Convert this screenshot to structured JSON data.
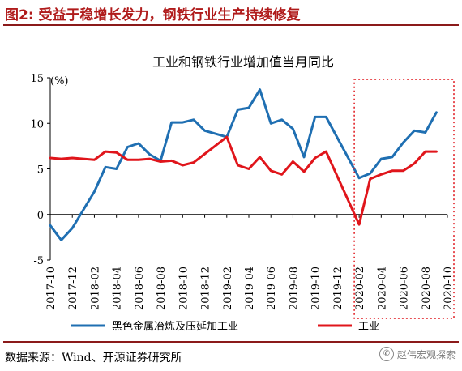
{
  "figure": {
    "title": "图2:  受益于稳增长发力，钢铁行业生产持续修复",
    "source": "数据来源：Wind、开源证券研究所",
    "watermark": "赵伟宏观探索",
    "watermark_icon": "wechat-icon"
  },
  "chart_data": {
    "type": "line",
    "title": "工业和钢铁行业增加值当月同比",
    "unit_label": "(%)",
    "ylim": [
      -5,
      15
    ],
    "yticks": [
      -5,
      0,
      5,
      10,
      15
    ],
    "xticks": [
      "2017-10",
      "2017-12",
      "2018-02",
      "2018-04",
      "2018-06",
      "2018-08",
      "2018-10",
      "2018-12",
      "2019-02",
      "2019-04",
      "2019-06",
      "2019-08",
      "2019-10",
      "2019-12",
      "2020-02",
      "2020-04",
      "2020-06",
      "2020-08",
      "2020-10"
    ],
    "x": [
      "2017-10",
      "2017-11",
      "2017-12",
      "2018-01",
      "2018-02",
      "2018-03",
      "2018-04",
      "2018-05",
      "2018-06",
      "2018-07",
      "2018-08",
      "2018-09",
      "2018-10",
      "2018-11",
      "2018-12",
      "2019-01",
      "2019-02",
      "2019-03",
      "2019-04",
      "2019-05",
      "2019-06",
      "2019-07",
      "2019-08",
      "2019-09",
      "2019-10",
      "2019-11",
      "2019-12",
      "2020-01",
      "2020-02",
      "2020-03",
      "2020-04",
      "2020-05",
      "2020-06",
      "2020-07",
      "2020-08",
      "2020-09",
      "2020-10"
    ],
    "series": [
      {
        "name": "黑色金属冶炼及压延加工业",
        "color": "#1f6fb2",
        "values": [
          -1.2,
          -2.8,
          -1.5,
          null,
          2.5,
          5.2,
          5.0,
          7.4,
          7.8,
          6.6,
          5.9,
          10.1,
          10.1,
          10.4,
          9.2,
          null,
          8.5,
          11.5,
          11.7,
          13.7,
          10.0,
          10.4,
          9.4,
          6.3,
          10.7,
          10.7,
          null,
          null,
          4.0,
          4.5,
          6.1,
          6.3,
          7.9,
          9.2,
          9.0,
          11.2,
          null
        ]
      },
      {
        "name": "工业",
        "color": "#e0151b",
        "values": [
          6.2,
          6.1,
          6.2,
          null,
          6.0,
          6.9,
          6.8,
          6.0,
          6.0,
          6.1,
          5.8,
          5.9,
          5.4,
          5.7,
          null,
          null,
          8.5,
          5.4,
          5.0,
          6.3,
          4.8,
          4.4,
          5.8,
          4.7,
          6.2,
          6.9,
          null,
          null,
          -1.1,
          3.9,
          4.4,
          4.8,
          4.8,
          5.6,
          6.9,
          6.9,
          null
        ]
      }
    ],
    "highlight_box": {
      "from": "2020-02",
      "to": "2020-10",
      "color": "#e0151b",
      "style": "dotted"
    },
    "legend_position": "bottom"
  }
}
